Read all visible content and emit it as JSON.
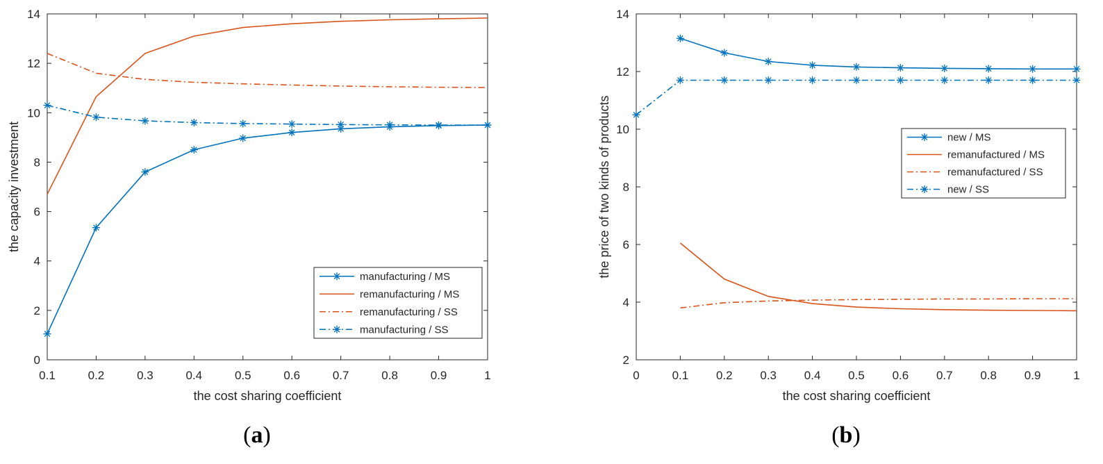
{
  "chart_data": [
    {
      "type": "line",
      "caption_letter": "a",
      "xlabel": "the cost sharing coefficient",
      "ylabel": "the capacity investment",
      "xlim": [
        0.1,
        1
      ],
      "ylim": [
        0,
        14
      ],
      "xticks": [
        "0.1",
        "0.2",
        "0.3",
        "0.4",
        "0.5",
        "0.6",
        "0.7",
        "0.8",
        "0.9",
        "1"
      ],
      "yticks": [
        "0",
        "2",
        "4",
        "6",
        "8",
        "10",
        "12",
        "14"
      ],
      "x": [
        0.1,
        0.2,
        0.3,
        0.4,
        0.5,
        0.6,
        0.7,
        0.8,
        0.9,
        1.0
      ],
      "legend_position": "bottom-right",
      "series": [
        {
          "name": "manufacturing / MS",
          "color": "#0072BD",
          "style": "solid",
          "marker": "asterisk",
          "values": [
            1.05,
            5.35,
            7.6,
            8.5,
            8.97,
            9.2,
            9.35,
            9.43,
            9.48,
            9.5
          ]
        },
        {
          "name": "remanufacturing / MS",
          "color": "#D95319",
          "style": "solid",
          "marker": "none",
          "values": [
            6.7,
            10.65,
            12.4,
            13.1,
            13.45,
            13.6,
            13.7,
            13.76,
            13.8,
            13.83
          ]
        },
        {
          "name": "remanufacturing / SS",
          "color": "#D95319",
          "style": "dashdot",
          "marker": "none",
          "values": [
            12.4,
            11.6,
            11.35,
            11.23,
            11.17,
            11.12,
            11.08,
            11.05,
            11.03,
            11.02
          ]
        },
        {
          "name": "manufacturing / SS",
          "color": "#0072BD",
          "style": "dashdot",
          "marker": "asterisk",
          "values": [
            10.3,
            9.82,
            9.67,
            9.6,
            9.56,
            9.54,
            9.52,
            9.51,
            9.5,
            9.5
          ]
        }
      ]
    },
    {
      "type": "line",
      "caption_letter": "b",
      "xlabel": "the cost sharing coefficient",
      "ylabel": "the price of two kinds of products",
      "xlim": [
        0,
        1
      ],
      "ylim": [
        2,
        14
      ],
      "xticks": [
        "0",
        "0.1",
        "0.2",
        "0.3",
        "0.4",
        "0.5",
        "0.6",
        "0.7",
        "0.8",
        "0.9",
        "1"
      ],
      "yticks": [
        "2",
        "4",
        "6",
        "8",
        "10",
        "12",
        "14"
      ],
      "legend_position": "top-right",
      "series": [
        {
          "name": "new / MS",
          "color": "#0072BD",
          "style": "solid",
          "marker": "asterisk",
          "x": [
            0.1,
            0.2,
            0.3,
            0.4,
            0.5,
            0.6,
            0.7,
            0.8,
            0.9,
            1.0
          ],
          "values": [
            13.15,
            12.65,
            12.35,
            12.22,
            12.16,
            12.13,
            12.11,
            12.1,
            12.09,
            12.09
          ]
        },
        {
          "name": "remanufactured / MS",
          "color": "#D95319",
          "style": "solid",
          "marker": "none",
          "x": [
            0.1,
            0.2,
            0.3,
            0.4,
            0.5,
            0.6,
            0.7,
            0.8,
            0.9,
            1.0
          ],
          "values": [
            6.05,
            4.8,
            4.2,
            3.95,
            3.83,
            3.77,
            3.74,
            3.72,
            3.71,
            3.7
          ]
        },
        {
          "name": "remanufactured / SS",
          "color": "#D95319",
          "style": "dashdot",
          "marker": "none",
          "x": [
            0.1,
            0.2,
            0.3,
            0.4,
            0.5,
            0.6,
            0.7,
            0.8,
            0.9,
            1.0
          ],
          "values": [
            3.8,
            3.98,
            4.04,
            4.07,
            4.09,
            4.1,
            4.11,
            4.11,
            4.12,
            4.12
          ]
        },
        {
          "name": "new / SS",
          "color": "#0072BD",
          "style": "dashdot",
          "marker": "asterisk",
          "x": [
            0.0,
            0.1,
            0.2,
            0.3,
            0.4,
            0.5,
            0.6,
            0.7,
            0.8,
            0.9,
            1.0
          ],
          "values": [
            10.5,
            11.7,
            11.7,
            11.7,
            11.7,
            11.7,
            11.7,
            11.7,
            11.7,
            11.7,
            11.7
          ]
        }
      ]
    }
  ]
}
